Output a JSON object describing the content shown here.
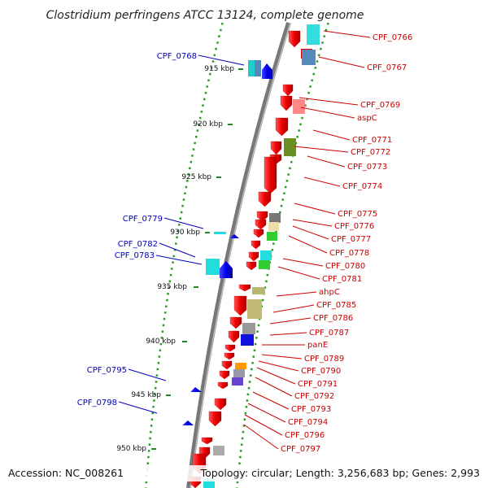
{
  "title": "Clostridium perfringens ATCC 13124, complete genome",
  "accession": "Accession: NC_008261",
  "summary": "Topology: circular; Length: 3,256,683 bp; Genes: 2,993",
  "kbp_ticks": [
    "915 kbp",
    "920 kbp",
    "925 kbp",
    "930 kbp",
    "935 kbp",
    "940 kbp",
    "945 kbp",
    "950 kbp"
  ],
  "colors": {
    "forward_label": "#cc0000",
    "reverse_label": "#0000bb",
    "forward_gene": "#ee1111",
    "reverse_gene": "#1111dd",
    "backbone": "#777777",
    "tick": "#228822"
  },
  "left_labels": [
    "CPF_0768",
    "CPF_0779",
    "CPF_0782",
    "CPF_0783",
    "CPF_0795",
    "CPF_0798"
  ],
  "right_labels": [
    "CPF_0766",
    "CPF_0767",
    "CPF_0769",
    "aspC",
    "CPF_0771",
    "CPF_0772",
    "CPF_0773",
    "CPF_0774",
    "CPF_0775",
    "CPF_0776",
    "CPF_0777",
    "CPF_0778",
    "CPF_0780",
    "CPF_0781",
    "ahpC",
    "CPF_0785",
    "CPF_0786",
    "CPF_0787",
    "panE",
    "CPF_0789",
    "CPF_0790",
    "CPF_0791",
    "CPF_0792",
    "CPF_0793",
    "CPF_0794",
    "CPF_0796",
    "CPF_0797"
  ]
}
